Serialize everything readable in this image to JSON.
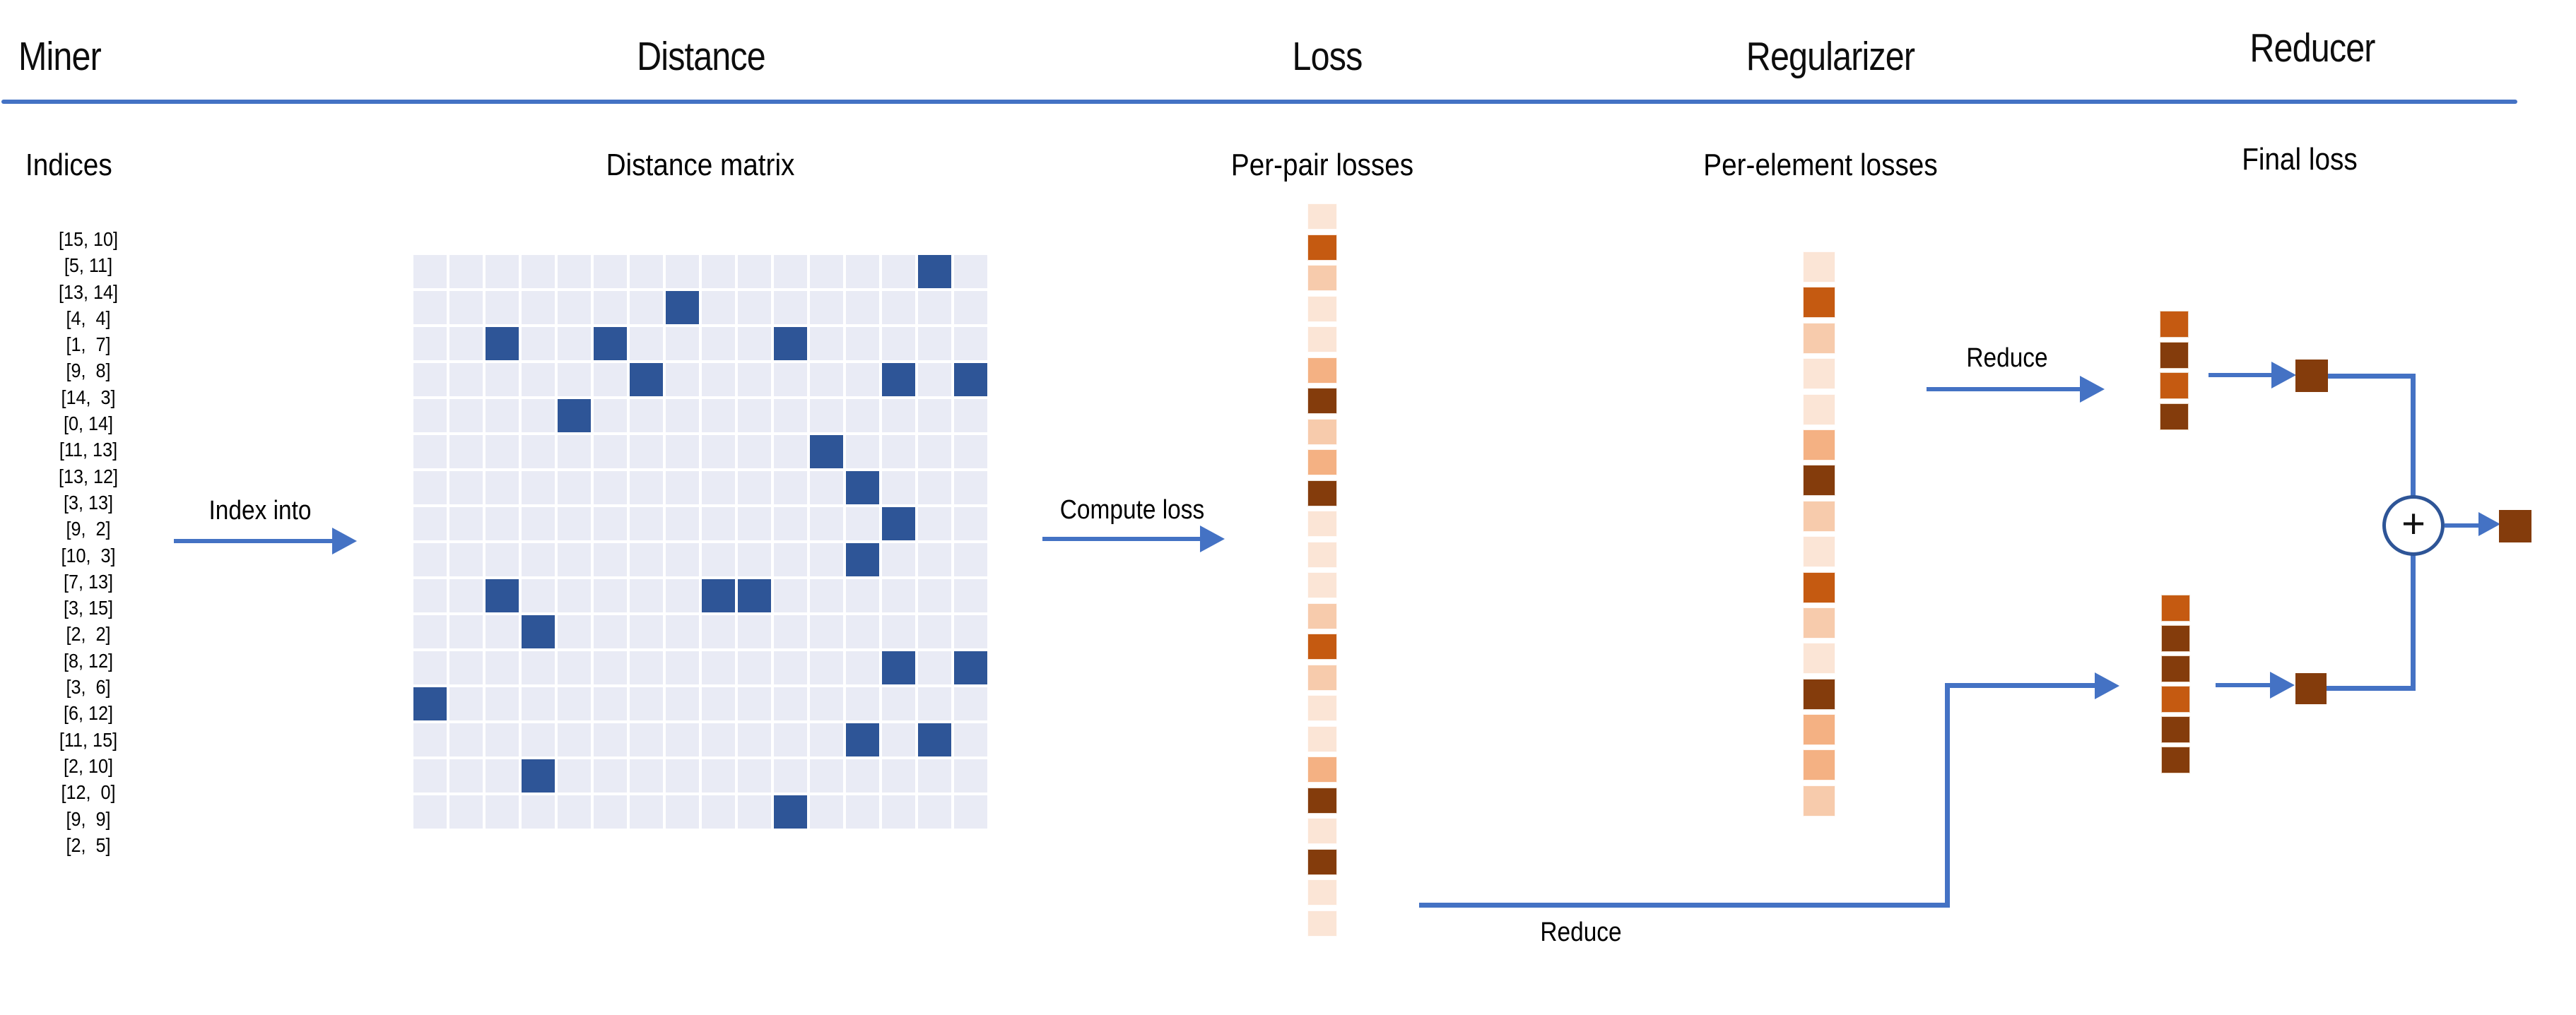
{
  "header": {
    "sections": [
      "Miner",
      "Distance",
      "Loss",
      "Regularizer",
      "Reducer"
    ]
  },
  "column_labels": {
    "miner": "Indices",
    "distance": "Distance matrix",
    "loss": "Per-pair losses",
    "regularizer": "Per-element losses",
    "reducer": "Final loss"
  },
  "arrow_labels": {
    "index_into": "Index into",
    "compute_loss": "Compute loss",
    "reduce_top": "Reduce",
    "reduce_bottom": "Reduce"
  },
  "plus_symbol": "+",
  "miner": {
    "pairs": [
      [
        15,
        10
      ],
      [
        5,
        11
      ],
      [
        13,
        14
      ],
      [
        4,
        4
      ],
      [
        1,
        7
      ],
      [
        9,
        8
      ],
      [
        14,
        3
      ],
      [
        0,
        14
      ],
      [
        11,
        13
      ],
      [
        13,
        12
      ],
      [
        3,
        13
      ],
      [
        9,
        2
      ],
      [
        10,
        3
      ],
      [
        7,
        13
      ],
      [
        3,
        15
      ],
      [
        2,
        2
      ],
      [
        8,
        12
      ],
      [
        3,
        6
      ],
      [
        6,
        12
      ],
      [
        11,
        15
      ],
      [
        2,
        10
      ],
      [
        12,
        0
      ],
      [
        9,
        9
      ],
      [
        2,
        5
      ]
    ]
  },
  "matrix": {
    "rows": 16,
    "cols": 16
  },
  "per_pair_losses": [
    "vlight",
    "strong",
    "light",
    "vlight",
    "vlight",
    "medium",
    "dark",
    "light",
    "medium",
    "dark",
    "vlight",
    "vlight",
    "vlight",
    "light",
    "strong",
    "light",
    "vlight",
    "vlight",
    "medium",
    "dark",
    "vlight",
    "dark",
    "vlight",
    "vlight"
  ],
  "per_element_losses": [
    "vlight",
    "strong",
    "light",
    "vlight",
    "vlight",
    "medium",
    "dark",
    "light",
    "vlight",
    "strong",
    "light",
    "vlight",
    "dark",
    "medium",
    "medium",
    "light"
  ],
  "reduced_element_losses": [
    "strong",
    "dark",
    "strong",
    "dark"
  ],
  "reduced_pair_losses": [
    "strong",
    "dark",
    "dark",
    "strong",
    "dark",
    "dark"
  ],
  "colors": {
    "accent_blue": "#4472C4",
    "matrix_cell": "#E9EBF5",
    "matrix_highlight": "#2E5597",
    "circle_stroke": "#2E5597",
    "loss_vlight": "#FBE5D6",
    "loss_light": "#F7CBAC",
    "loss_medium": "#F4B183",
    "loss_strong": "#C55A11",
    "loss_dark": "#843C0C"
  }
}
